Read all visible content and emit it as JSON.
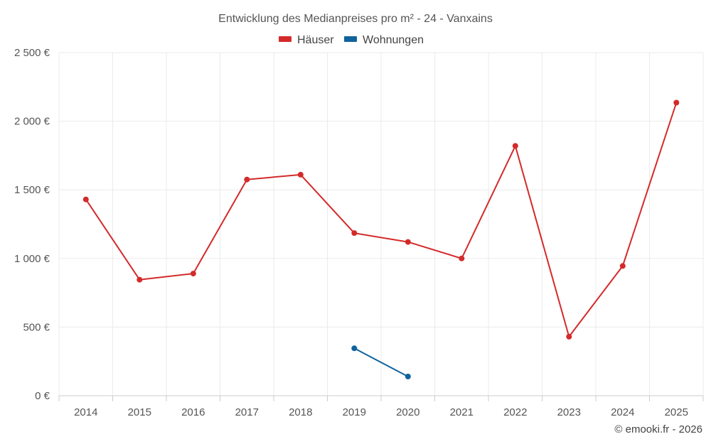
{
  "chart_data": {
    "type": "line",
    "title": "Entwicklung des Medianpreises pro m² - 24 - Vanxains",
    "categories": [
      "2014",
      "2015",
      "2016",
      "2017",
      "2018",
      "2019",
      "2020",
      "2021",
      "2022",
      "2023",
      "2024",
      "2025"
    ],
    "series": [
      {
        "name": "Häuser",
        "color": "#d42a2a",
        "values": [
          1430,
          845,
          890,
          1575,
          1610,
          1185,
          1120,
          1000,
          1820,
          430,
          945,
          2135
        ]
      },
      {
        "name": "Wohnungen",
        "color": "#10639c",
        "values": [
          null,
          null,
          null,
          null,
          null,
          345,
          140,
          null,
          null,
          null,
          null,
          null
        ]
      }
    ],
    "ylim": [
      0,
      2500
    ],
    "yticks": [
      0,
      500,
      1000,
      1500,
      2000,
      2500
    ],
    "ytick_labels": [
      "0 €",
      "500 €",
      "1 000 €",
      "1 500 €",
      "2 000 €",
      "2 500 €"
    ],
    "xlabel": "",
    "ylabel": "",
    "grid": true,
    "legend_position": "top-center"
  },
  "credit": "© emooki.fr - 2026"
}
